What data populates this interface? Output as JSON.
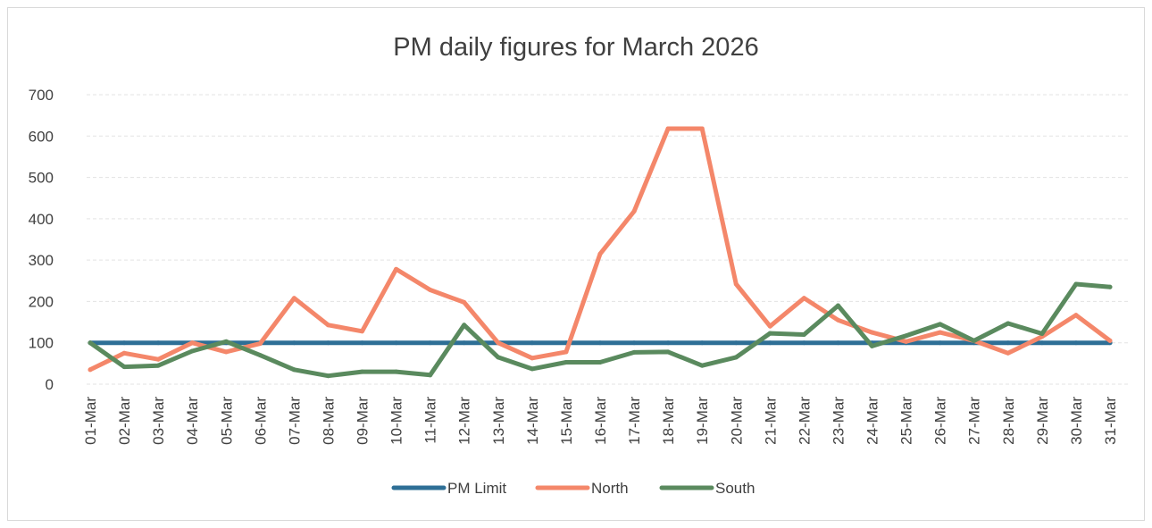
{
  "chart_data": {
    "type": "line",
    "title": "PM daily figures for March 2026",
    "xlabel": "",
    "ylabel": "",
    "ylim": [
      0,
      700
    ],
    "yticks": [
      0,
      100,
      200,
      300,
      400,
      500,
      600,
      700
    ],
    "grid": "horizontal",
    "legend_position": "bottom",
    "categories": [
      "01-Mar",
      "02-Mar",
      "03-Mar",
      "04-Mar",
      "05-Mar",
      "06-Mar",
      "07-Mar",
      "08-Mar",
      "09-Mar",
      "10-Mar",
      "11-Mar",
      "12-Mar",
      "13-Mar",
      "14-Mar",
      "15-Mar",
      "16-Mar",
      "17-Mar",
      "18-Mar",
      "19-Mar",
      "20-Mar",
      "21-Mar",
      "22-Mar",
      "23-Mar",
      "24-Mar",
      "25-Mar",
      "26-Mar",
      "27-Mar",
      "28-Mar",
      "29-Mar",
      "30-Mar",
      "31-Mar"
    ],
    "series": [
      {
        "name": "PM Limit",
        "color": "#2e6f96",
        "values": [
          100,
          100,
          100,
          100,
          100,
          100,
          100,
          100,
          100,
          100,
          100,
          100,
          100,
          100,
          100,
          100,
          100,
          100,
          100,
          100,
          100,
          100,
          100,
          100,
          100,
          100,
          100,
          100,
          100,
          100,
          100
        ]
      },
      {
        "name": "North",
        "color": "#f4876a",
        "values": [
          35,
          75,
          60,
          100,
          78,
          98,
          208,
          143,
          128,
          278,
          228,
          198,
          100,
          63,
          78,
          315,
          418,
          618,
          618,
          242,
          140,
          208,
          155,
          125,
          103,
          125,
          105,
          75,
          115,
          167,
          105
        ]
      },
      {
        "name": "South",
        "color": "#5a8a5e",
        "values": [
          100,
          42,
          45,
          80,
          103,
          70,
          35,
          20,
          30,
          30,
          22,
          143,
          65,
          37,
          53,
          53,
          77,
          78,
          45,
          65,
          123,
          120,
          190,
          92,
          117,
          145,
          105,
          147,
          122,
          242,
          235
        ]
      }
    ]
  }
}
